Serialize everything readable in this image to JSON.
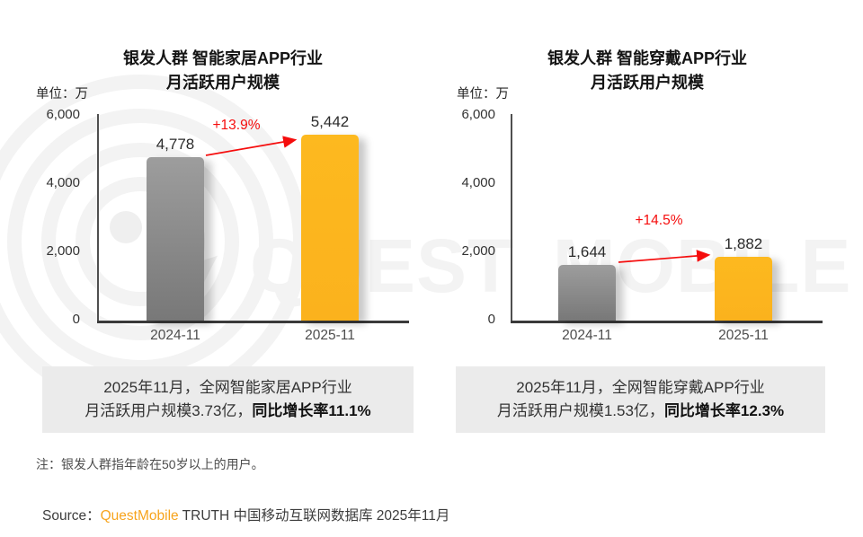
{
  "watermark_text": "QUEST MOBILE",
  "colors": {
    "bar_2024": "#8b8b8b",
    "bar_2025": "#FCB61D",
    "growth_red": "#F50D0D",
    "caption_bg": "#EBEBEB",
    "brand_orange": "#F7A41D",
    "watermark_gray": "#F3F3F3"
  },
  "chart_data": [
    {
      "type": "bar",
      "title": [
        "银发人群 智能家居APP行业",
        "月活跃用户规模"
      ],
      "unit_label": "单位：万",
      "categories": [
        "2024-11",
        "2025-11"
      ],
      "values": [
        4778,
        5442
      ],
      "value_labels": [
        "4,778",
        "5,442"
      ],
      "growth_label": "+13.9%",
      "ylim": [
        0,
        6000
      ],
      "ytick_labels": [
        "6,000",
        "4,000",
        "2,000",
        "0"
      ],
      "grid": false,
      "legend": "none",
      "caption": {
        "line1": "2025年11月，全网智能家居APP行业",
        "line2_normal": "月活跃用户规模3.73亿，",
        "line2_bold": "同比增长率11.1%"
      }
    },
    {
      "type": "bar",
      "title": [
        "银发人群 智能穿戴APP行业",
        "月活跃用户规模"
      ],
      "unit_label": "单位：万",
      "categories": [
        "2024-11",
        "2025-11"
      ],
      "values": [
        1644,
        1882
      ],
      "value_labels": [
        "1,644",
        "1,882"
      ],
      "growth_label": "+14.5%",
      "ylim": [
        0,
        6000
      ],
      "ytick_labels": [
        "6,000",
        "4,000",
        "2,000",
        "0"
      ],
      "grid": false,
      "legend": "none",
      "caption": {
        "line1": "2025年11月，全网智能穿戴APP行业",
        "line2_normal": "月活跃用户规模1.53亿，",
        "line2_bold": "同比增长率12.3%"
      }
    }
  ],
  "note": "注：银发人群指年龄在50岁以上的用户。",
  "source": {
    "prefix": "Source：",
    "brand": "QuestMobile",
    "suffix": " TRUTH 中国移动互联网数据库 2025年11月"
  }
}
